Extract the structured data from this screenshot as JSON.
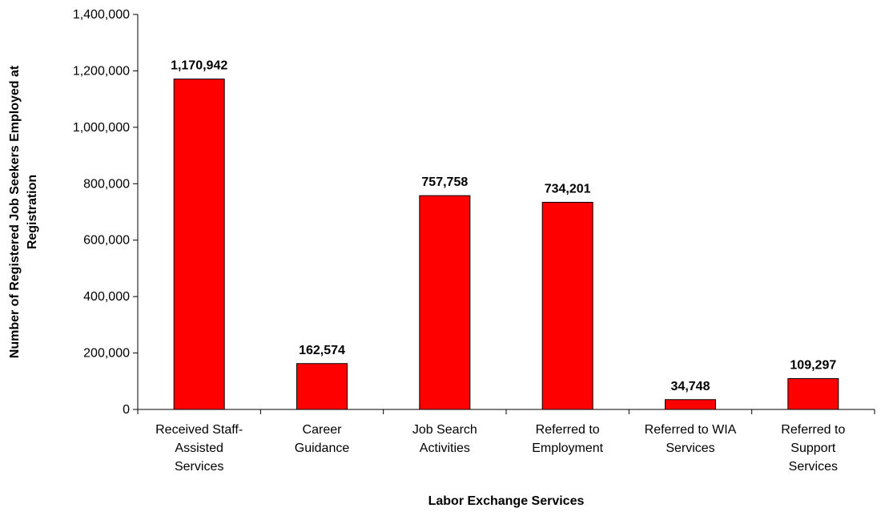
{
  "chart_data": {
    "type": "bar",
    "categories": [
      [
        "Received Staff-",
        "Assisted",
        "Services"
      ],
      [
        "Career",
        "Guidance"
      ],
      [
        "Job Search",
        "Activities"
      ],
      [
        "Referred to",
        "Employment"
      ],
      [
        "Referred to WIA",
        "Services"
      ],
      [
        "Referred to",
        "Support",
        "Services"
      ]
    ],
    "values": [
      1170942,
      162574,
      757758,
      734201,
      34748,
      109297
    ],
    "value_labels": [
      "1,170,942",
      "162,574",
      "757,758",
      "734,201",
      "34,748",
      "109,297"
    ],
    "title": "",
    "xlabel": "Labor Exchange Services",
    "ylabel": [
      "Number of Registered Job Seekers Employed at",
      "Registration"
    ],
    "ylim": [
      0,
      1400000
    ],
    "yticks": [
      0,
      200000,
      400000,
      600000,
      800000,
      1000000,
      1200000,
      1400000
    ],
    "ytick_labels": [
      "0",
      "200,000",
      "400,000",
      "600,000",
      "800,000",
      "1,000,000",
      "1,200,000",
      "1,400,000"
    ],
    "grid": false,
    "legend": "none",
    "bar_color": "#ff0000",
    "bar_stroke": "#000000"
  }
}
